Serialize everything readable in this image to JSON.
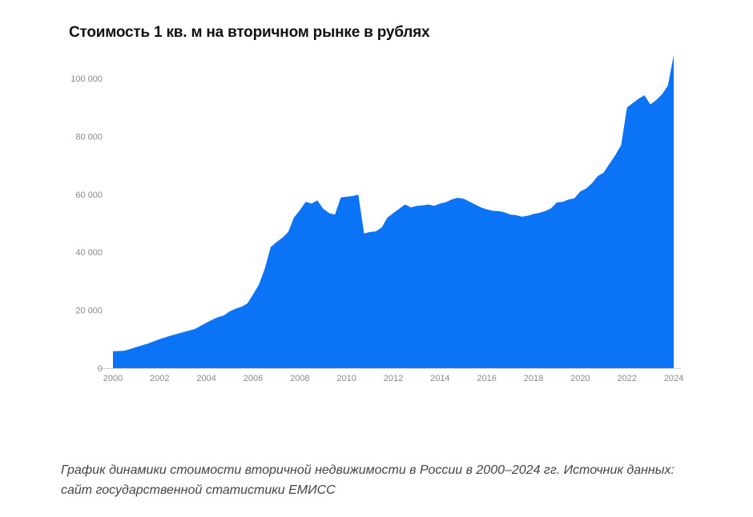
{
  "chart_data": {
    "type": "area",
    "title": "Стоимость 1 кв. м на вторичном рынке в рублях",
    "xlabel": "",
    "ylabel": "",
    "xlim": [
      2000,
      2024
    ],
    "ylim": [
      0,
      108000
    ],
    "grid": false,
    "legend": "none",
    "color": "#0b73f5",
    "x_ticks": [
      2000,
      2002,
      2004,
      2006,
      2008,
      2010,
      2012,
      2014,
      2016,
      2018,
      2020,
      2022,
      2024
    ],
    "x_tick_labels": [
      "2000",
      "2002",
      "2004",
      "2006",
      "2008",
      "2010",
      "2012",
      "2014",
      "2016",
      "2018",
      "2020",
      "2022",
      "2024"
    ],
    "y_ticks": [
      0,
      20000,
      40000,
      60000,
      80000,
      100000
    ],
    "y_tick_labels": [
      "0",
      "20 000",
      "40 000",
      "60 000",
      "80 000",
      "100 000"
    ],
    "series": [
      {
        "x": [
          2000,
          2000.5,
          2001,
          2001.5,
          2002,
          2002.5,
          2003,
          2003.5,
          2004,
          2004.25,
          2004.5,
          2004.75,
          2005,
          2005.25,
          2005.5,
          2005.75,
          2006,
          2006.25,
          2006.5,
          2006.75,
          2007,
          2007.25,
          2007.5,
          2007.75,
          2008,
          2008.25,
          2008.5,
          2008.75,
          2009,
          2009.25,
          2009.5,
          2009.75,
          2010,
          2010.25,
          2010.5,
          2010.75,
          2011,
          2011.25,
          2011.5,
          2011.75,
          2012,
          2012.25,
          2012.5,
          2012.75,
          2013,
          2013.25,
          2013.5,
          2013.75,
          2014,
          2014.25,
          2014.5,
          2014.75,
          2015,
          2015.25,
          2015.5,
          2015.75,
          2016,
          2016.25,
          2016.5,
          2016.75,
          2017,
          2017.25,
          2017.5,
          2017.75,
          2018,
          2018.25,
          2018.5,
          2018.75,
          2019,
          2019.25,
          2019.5,
          2019.75,
          2020,
          2020.25,
          2020.5,
          2020.75,
          2021,
          2021.25,
          2021.5,
          2021.75,
          2022,
          2022.25,
          2022.5,
          2022.75,
          2023,
          2023.25,
          2023.5,
          2023.75,
          2024
        ],
        "values": [
          5800,
          6000,
          7300,
          8500,
          10000,
          11300,
          12400,
          13500,
          15700,
          16700,
          17600,
          18200,
          19600,
          20500,
          21200,
          22300,
          25500,
          28900,
          34400,
          41800,
          43500,
          45000,
          47000,
          52000,
          54500,
          57400,
          56800,
          57900,
          55000,
          53500,
          53000,
          58900,
          59200,
          59400,
          59900,
          46500,
          47000,
          47200,
          48500,
          52000,
          53500,
          55000,
          56500,
          55500,
          56000,
          56200,
          56500,
          56000,
          56800,
          57300,
          58200,
          58800,
          58500,
          57500,
          56500,
          55500,
          54800,
          54300,
          54200,
          53800,
          53000,
          52800,
          52300,
          52600,
          53200,
          53600,
          54200,
          55200,
          57200,
          57400,
          58200,
          58600,
          61000,
          62000,
          63800,
          66300,
          67500,
          70500,
          73500,
          77000,
          90000,
          91500,
          93000,
          94200,
          91000,
          92500,
          94500,
          97500,
          108000
        ]
      }
    ]
  },
  "caption": "График динамики стоимости вторичной недвижимости в России в 2000–2024 гг. Источник данных: сайт государственной статистики ЕМИСС"
}
